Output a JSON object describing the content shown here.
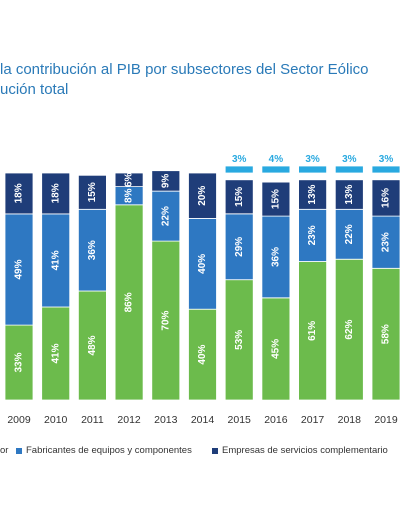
{
  "title_line1": "la contribución al PIB por subsectores del Sector Eólico",
  "title_line2": "ución total",
  "colors": {
    "green": "#6cbb4c",
    "blue": "#2e78c2",
    "navy": "#1f3d79",
    "cyan": "#29a9e0"
  },
  "chart_data": {
    "type": "bar",
    "stacked": true,
    "percent": true,
    "categories": [
      "2009",
      "2010",
      "2011",
      "2012",
      "2013",
      "2014",
      "2015",
      "2016",
      "2017",
      "2018",
      "2019"
    ],
    "series": [
      {
        "name": "",
        "color": "#6cbb4c",
        "values": [
          33,
          41,
          48,
          86,
          70,
          40,
          53,
          45,
          61,
          62,
          58
        ]
      },
      {
        "name": "Fabricantes de equipos  y componentes",
        "color": "#2e78c2",
        "values": [
          49,
          41,
          36,
          8,
          22,
          40,
          29,
          36,
          23,
          22,
          23
        ]
      },
      {
        "name": "Empresas de servicios complementario",
        "color": "#1f3d79",
        "values": [
          18,
          18,
          15,
          6,
          9,
          20,
          15,
          15,
          13,
          13,
          16
        ]
      },
      {
        "name": "",
        "color": "#29a9e0",
        "values": [
          0,
          0,
          0,
          0,
          0,
          0,
          3,
          4,
          3,
          3,
          3
        ]
      }
    ],
    "labels": [
      [
        "33%",
        "41%",
        "48%",
        "86%",
        "70%",
        "40%",
        "53%",
        "45%",
        "61%",
        "62%",
        "58%"
      ],
      [
        "49%",
        "41%",
        "36%",
        "8%",
        "22%",
        "40%",
        "29%",
        "36%",
        "23%",
        "22%",
        "23%"
      ],
      [
        "18%",
        "18%",
        "15%",
        "6%",
        "9%",
        "20%",
        "15%",
        "15%",
        "13%",
        "13%",
        "16%"
      ],
      [
        "",
        "",
        "",
        "",
        "",
        "",
        "3%",
        "4%",
        "3%",
        "3%",
        "3%"
      ]
    ],
    "ylim": [
      0,
      100
    ],
    "legend": {
      "position": "bottom",
      "items": [
        {
          "label": "or",
          "color": "#6cbb4c"
        },
        {
          "label": "Fabricantes de equipos  y componentes",
          "color": "#2e78c2"
        },
        {
          "label": "Empresas de servicios complementario",
          "color": "#1f3d79"
        }
      ]
    }
  }
}
